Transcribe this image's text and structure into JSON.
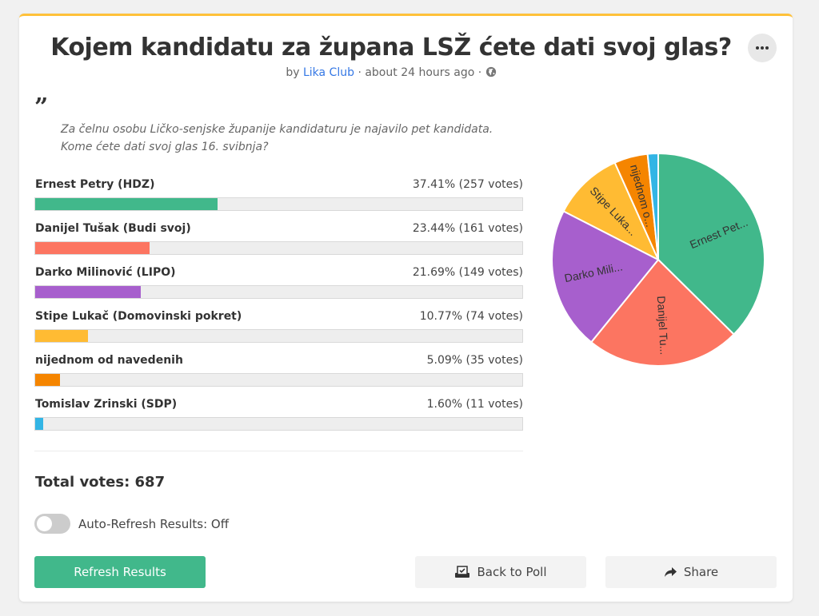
{
  "poll": {
    "title": "Kojem kandidatu za župana LSŽ ćete dati svoj glas?",
    "by": "by",
    "author": "Lika Club",
    "sep": "·",
    "time": "about 24 hours ago",
    "quote_mark": "”",
    "description_line1": "Za čelnu osobu Ličko-senjske županije kandidaturu je najavilo pet kandidata.",
    "description_line2": "Kome ćete dati svoj glas 16. svibnja?"
  },
  "options": [
    {
      "label": "Ernest Petry (HDZ)",
      "stats": "37.41% (257 votes)",
      "percent": 37.41,
      "votes": 257,
      "color": "#41b88b",
      "pie_label": "Ernest Pet..."
    },
    {
      "label": "Danijel Tušak (Budi svoj)",
      "stats": "23.44% (161 votes)",
      "percent": 23.44,
      "votes": 161,
      "color": "#fc7561",
      "pie_label": "Danijel Tu..."
    },
    {
      "label": "Darko Milinović (LIPO)",
      "stats": "21.69% (149 votes)",
      "percent": 21.69,
      "votes": 149,
      "color": "#a75fcd",
      "pie_label": "Darko Mili..."
    },
    {
      "label": "Stipe Lukač (Domovinski pokret)",
      "stats": "10.77% (74 votes)",
      "percent": 10.77,
      "votes": 74,
      "color": "#ffbb33",
      "pie_label": "Stipe Luka..."
    },
    {
      "label": "nijednom od navedenih",
      "stats": "5.09% (35 votes)",
      "percent": 5.09,
      "votes": 35,
      "color": "#f58500",
      "pie_label": "nijednom o..."
    },
    {
      "label": "Tomislav Zrinski (SDP)",
      "stats": "1.60% (11 votes)",
      "percent": 1.6,
      "votes": 11,
      "color": "#33b5e5",
      "pie_label": ""
    }
  ],
  "total_votes": "Total votes: 687",
  "auto_refresh": {
    "label": "Auto-Refresh Results: Off",
    "on": false
  },
  "buttons": {
    "refresh": "Refresh Results",
    "back": "Back to Poll",
    "share": "Share"
  },
  "icons": {
    "more": "more-horizontal-icon",
    "globe": "globe-icon",
    "back": "ballot-box-icon",
    "share": "share-arrow-icon"
  }
}
